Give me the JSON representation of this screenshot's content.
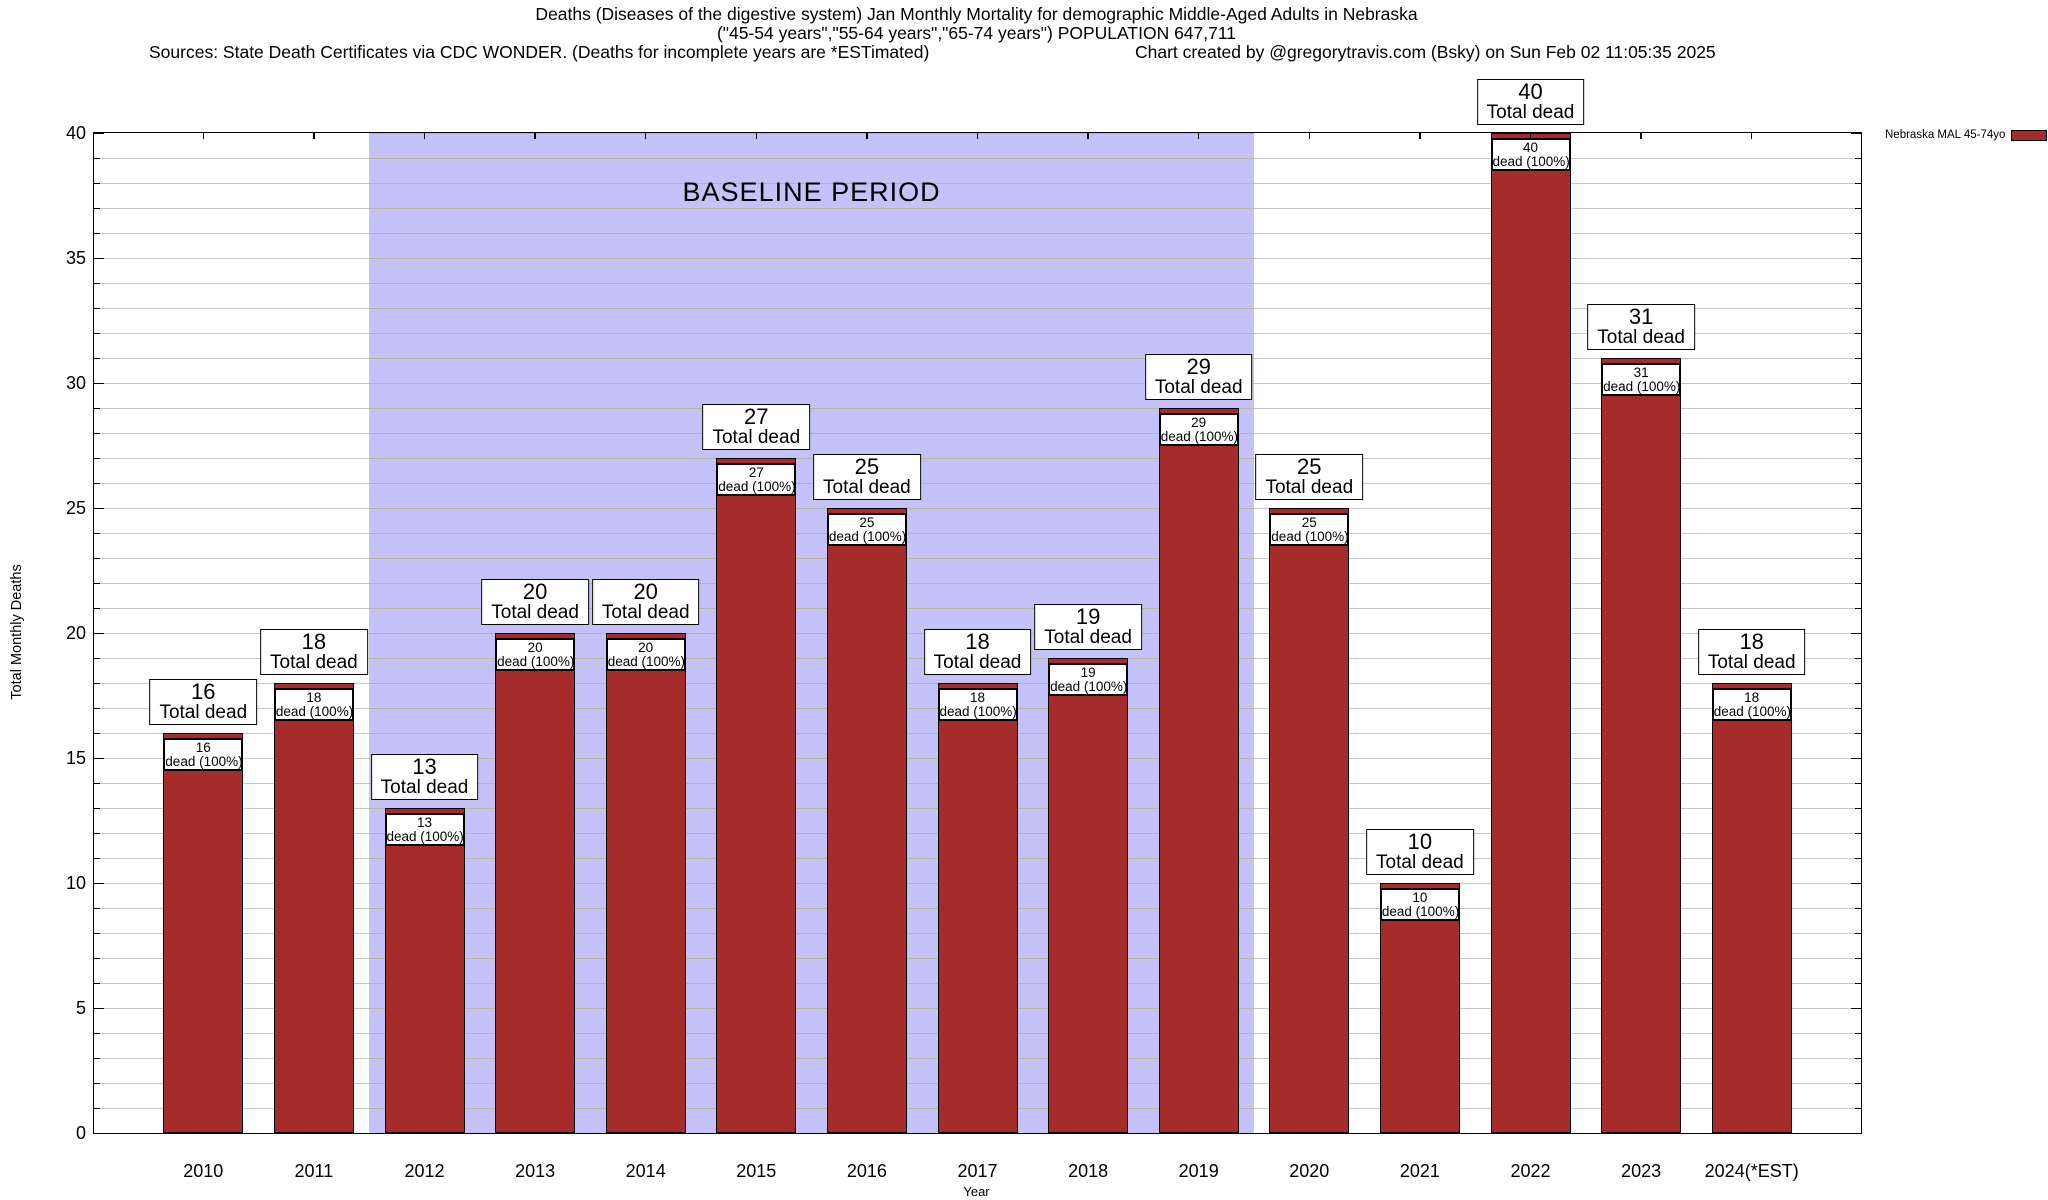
{
  "header": {
    "title_line1": "Deaths (Diseases of the digestive system) Jan Monthly Mortality for demographic Middle-Aged Adults in Nebraska",
    "title_line2": "(\"45-54 years\",\"55-64 years\",\"65-74 years\") POPULATION 647,711",
    "sources": "Sources: State Death Certificates via CDC WONDER. (Deaths for incomplete years are *ESTimated)",
    "credit": "Chart created by @gregorytravis.com (Bsky) on Sun Feb 02 11:05:35 2025"
  },
  "legend": {
    "label": "Nebraska MAL 45-74yo",
    "swatch_color": "#a62c2c"
  },
  "chart_data": {
    "type": "bar",
    "title": "Deaths (Diseases of the digestive system) Jan Monthly Mortality for demographic Middle-Aged Adults in Nebraska",
    "categories": [
      "2010",
      "2011",
      "2012",
      "2013",
      "2014",
      "2015",
      "2016",
      "2017",
      "2018",
      "2019",
      "2020",
      "2021",
      "2022",
      "2023",
      "2024(*EST)"
    ],
    "values": [
      16,
      18,
      13,
      20,
      20,
      27,
      25,
      18,
      19,
      29,
      25,
      10,
      40,
      31,
      18
    ],
    "series_name": "Nebraska MAL 45-74yo",
    "xlabel": "Year",
    "ylabel": "Total Monthly Deaths",
    "ylim": [
      0,
      40
    ],
    "ytick_step": 5,
    "yminor_step": 1,
    "grid": true,
    "legend_position": "top-right-outside",
    "bar_top_label_suffix": "Total dead",
    "bar_inner_label_suffix": "dead (100%)",
    "baseline_period": {
      "label": "BASELINE PERIOD",
      "start_category": "2012",
      "end_category": "2019"
    },
    "colors": {
      "bar": "#a62c2c",
      "baseline_region": "#c4c2f8",
      "grid": "#c6c6c6",
      "baseline_grid": "#b9b59b"
    }
  }
}
